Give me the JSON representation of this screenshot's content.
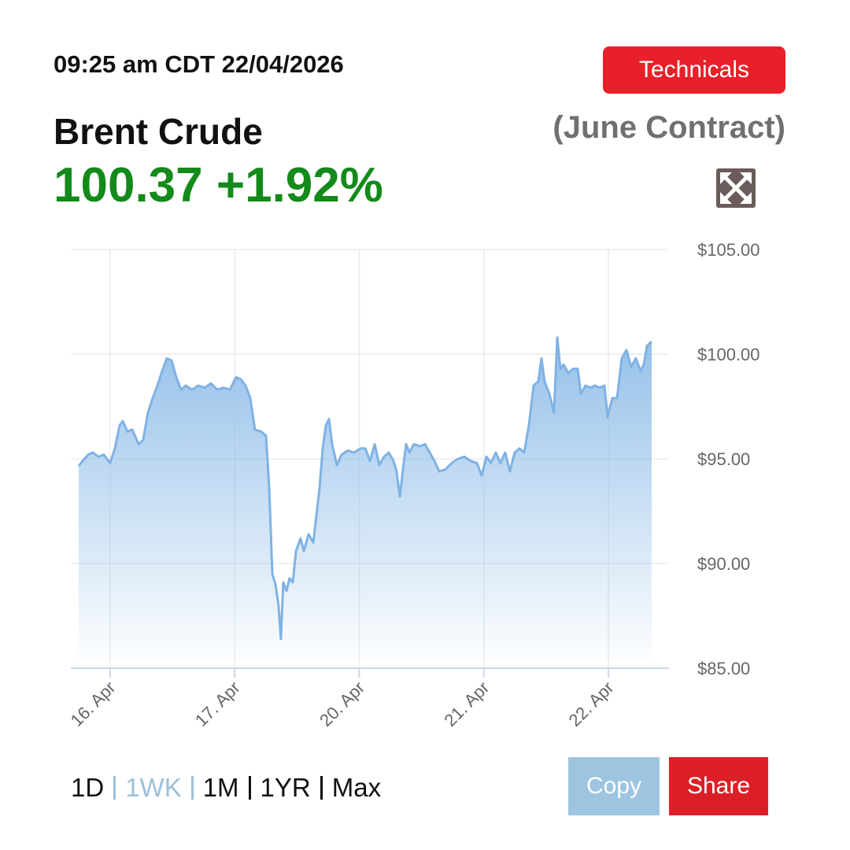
{
  "header": {
    "timestamp": "09:25 am CDT 22/04/2026",
    "technicals_button": "Technicals",
    "title": "Brent Crude",
    "contract": "(June Contract)",
    "price": "100.37",
    "change": "+1.92%"
  },
  "range_selector": [
    "1D",
    "1WK",
    "1M",
    "1YR",
    "Max"
  ],
  "selected_range": "1WK",
  "buttons": {
    "copy": "Copy",
    "share": "Share"
  },
  "chart_data": {
    "type": "area",
    "color": "#7fb2e5",
    "grid": true,
    "x": [
      -0.253,
      -0.221,
      -0.177,
      -0.139,
      -0.095,
      -0.051,
      0,
      0.038,
      0.076,
      0.101,
      0.139,
      0.177,
      0.228,
      0.265,
      0.303,
      0.341,
      0.379,
      0.417,
      0.455,
      0.493,
      0.531,
      0.569,
      0.607,
      0.657,
      0.708,
      0.758,
      0.809,
      0.86,
      0.91,
      0.961,
      1.011,
      1.049,
      1.087,
      1.125,
      1.163,
      1.213,
      1.251,
      1.277,
      1.302,
      1.327,
      1.352,
      1.371,
      1.39,
      1.416,
      1.441,
      1.466,
      1.492,
      1.529,
      1.555,
      1.593,
      1.631,
      1.656,
      1.681,
      1.706,
      1.732,
      1.757,
      1.782,
      1.82,
      1.858,
      1.909,
      1.959,
      2.01,
      2.048,
      2.086,
      2.124,
      2.161,
      2.199,
      2.237,
      2.275,
      2.3,
      2.326,
      2.351,
      2.376,
      2.402,
      2.439,
      2.49,
      2.528,
      2.566,
      2.604,
      2.642,
      2.692,
      2.743,
      2.793,
      2.844,
      2.894,
      2.945,
      2.983,
      3.021,
      3.059,
      3.096,
      3.134,
      3.172,
      3.21,
      3.248,
      3.286,
      3.324,
      3.362,
      3.4,
      3.438,
      3.463,
      3.488,
      3.527,
      3.564,
      3.59,
      3.615,
      3.64,
      3.678,
      3.716,
      3.754,
      3.779,
      3.817,
      3.855,
      3.893,
      3.931,
      3.969,
      3.994,
      4.032,
      4.07,
      4.108,
      4.146,
      4.183,
      4.221,
      4.259,
      4.285,
      4.31,
      4.348
    ],
    "values": [
      94.66,
      94.9,
      95.2,
      95.3,
      95.1,
      95.2,
      94.8,
      95.5,
      96.6,
      96.8,
      96.3,
      96.4,
      95.7,
      95.9,
      97.2,
      97.9,
      98.5,
      99.2,
      99.8,
      99.7,
      98.9,
      98.3,
      98.5,
      98.3,
      98.5,
      98.4,
      98.6,
      98.3,
      98.4,
      98.3,
      98.9,
      98.8,
      98.5,
      97.9,
      96.4,
      96.3,
      96.1,
      93.6,
      89.5,
      89.0,
      88.0,
      86.4,
      89.1,
      88.7,
      89.3,
      89.1,
      90.6,
      91.2,
      90.6,
      91.4,
      91.0,
      92.3,
      93.6,
      95.5,
      96.6,
      96.9,
      95.7,
      94.7,
      95.2,
      95.4,
      95.3,
      95.5,
      95.5,
      94.9,
      95.7,
      94.7,
      95.1,
      95.3,
      94.9,
      94.4,
      93.2,
      94.5,
      95.7,
      95.3,
      95.7,
      95.6,
      95.7,
      95.3,
      94.9,
      94.4,
      94.5,
      94.8,
      95.0,
      95.1,
      94.9,
      94.8,
      94.2,
      95.1,
      94.8,
      95.3,
      94.8,
      95.3,
      94.4,
      95.3,
      95.5,
      95.3,
      96.6,
      98.5,
      98.7,
      99.8,
      98.7,
      98.1,
      97.2,
      100.8,
      99.3,
      99.5,
      99.1,
      99.3,
      99.3,
      98.1,
      98.5,
      98.4,
      98.5,
      98.4,
      98.5,
      97.0,
      97.9,
      97.9,
      99.8,
      100.2,
      99.4,
      99.8,
      99.2,
      99.5,
      100.4,
      100.6
    ],
    "xlim": [
      -0.316,
      4.487
    ],
    "xticks": [
      {
        "value": 0,
        "label": "16. Apr"
      },
      {
        "value": 1,
        "label": "17. Apr"
      },
      {
        "value": 2,
        "label": "20. Apr"
      },
      {
        "value": 3,
        "label": "21. Apr"
      },
      {
        "value": 4,
        "label": "22. Apr"
      }
    ],
    "ylim": [
      85,
      105
    ],
    "yticks": [
      {
        "value": 85,
        "label": "$85.00"
      },
      {
        "value": 90,
        "label": "$90.00"
      },
      {
        "value": 95,
        "label": "$95.00"
      },
      {
        "value": 100,
        "label": "$100.00"
      },
      {
        "value": 105,
        "label": "$105.00"
      }
    ]
  }
}
